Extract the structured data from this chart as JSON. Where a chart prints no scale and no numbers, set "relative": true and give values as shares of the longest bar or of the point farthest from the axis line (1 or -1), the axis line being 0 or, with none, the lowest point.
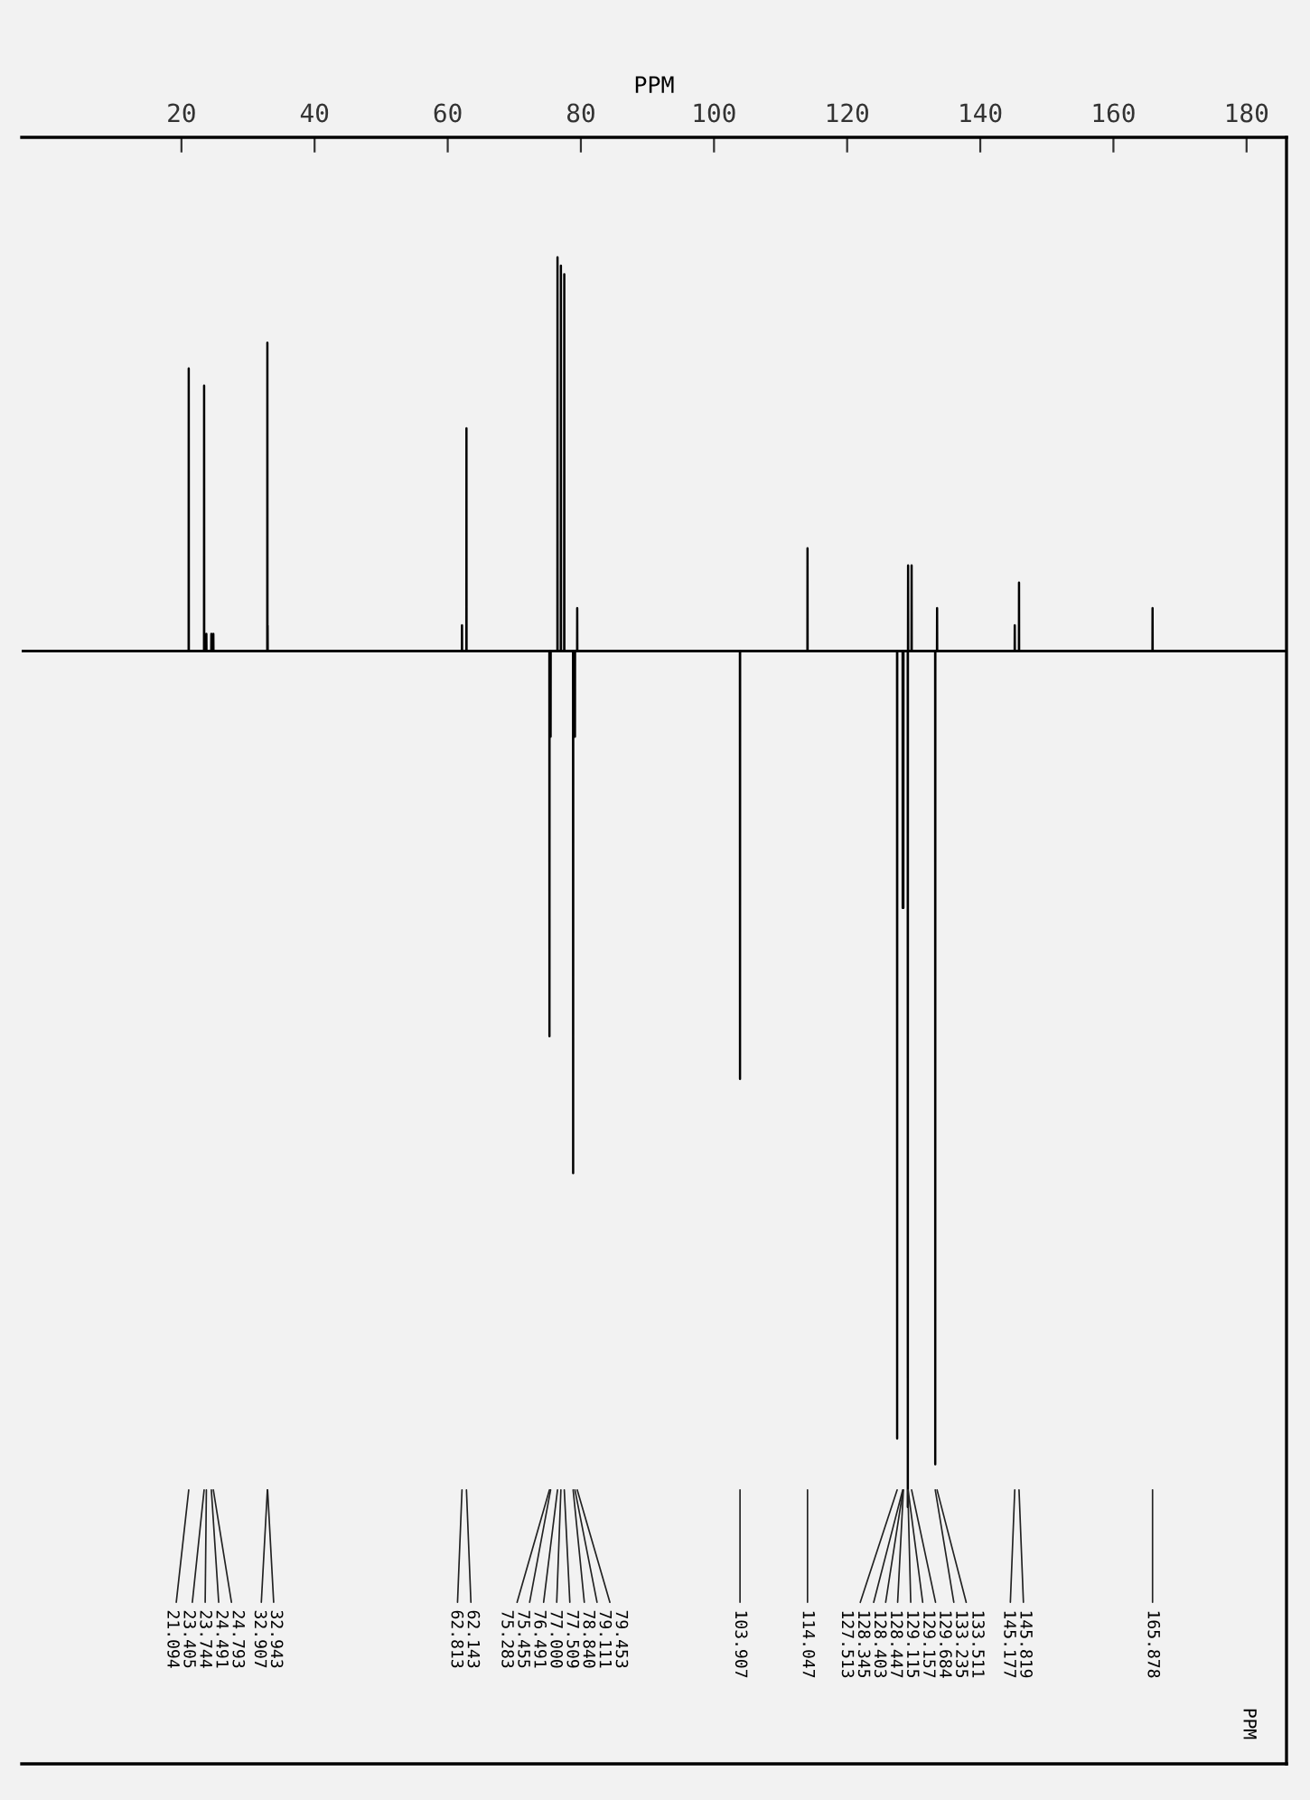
{
  "chart_data": {
    "type": "line",
    "relative": true,
    "xlabel": "PPM",
    "xlim": [
      -4,
      186
    ],
    "xticks": [
      20,
      40,
      60,
      80,
      100,
      120,
      140,
      160,
      180
    ],
    "grid": false,
    "marker": "none",
    "line_style": "solid",
    "series": [
      {
        "color": "#000000",
        "x": [
          -4,
          21.079,
          21.094,
          21.109,
          23.39,
          23.405,
          23.42,
          23.729,
          23.744,
          23.759,
          24.476,
          24.491,
          24.506,
          24.778,
          24.791,
          24.808,
          32.892,
          32.907,
          32.922,
          32.928,
          32.943,
          32.958,
          62.128,
          62.143,
          62.158,
          62.798,
          62.813,
          62.828,
          75.268,
          75.283,
          75.298,
          75.44,
          75.455,
          75.47,
          76.476,
          76.491,
          76.506,
          76.985,
          77.0,
          77.015,
          77.494,
          77.509,
          77.524,
          78.825,
          78.84,
          78.855,
          79.096,
          79.111,
          79.126,
          79.438,
          79.453,
          79.468,
          103.892,
          103.907,
          103.922,
          114.032,
          114.047,
          114.062,
          127.498,
          127.513,
          127.528,
          128.33,
          128.345,
          128.36,
          128.388,
          128.403,
          128.418,
          128.432,
          128.447,
          128.462,
          129.1,
          129.115,
          129.13,
          129.142,
          129.157,
          129.172,
          129.669,
          129.684,
          129.699,
          133.22,
          133.235,
          133.25,
          133.496,
          133.511,
          133.526,
          145.162,
          145.177,
          145.192,
          145.804,
          145.819,
          145.834,
          165.863,
          165.878,
          165.893,
          186
        ],
        "values": [
          0,
          0,
          0.33,
          0,
          0,
          0.31,
          0,
          0,
          0.02,
          0,
          0,
          0.02,
          0,
          0,
          0.02,
          0,
          0,
          0.36,
          0,
          0,
          0.03,
          0,
          0,
          0.03,
          0,
          0,
          0.26,
          0,
          0,
          -0.45,
          0,
          0,
          -0.1,
          0,
          0,
          0.46,
          0,
          0,
          0.45,
          0,
          0,
          0.44,
          0,
          0,
          -0.61,
          0,
          0,
          -0.1,
          0,
          0,
          0.05,
          0,
          0,
          -0.5,
          0,
          0,
          0.12,
          0,
          0,
          -0.92,
          0,
          0,
          -0.3,
          0,
          0,
          -0.3,
          0,
          0,
          -0.3,
          0,
          0,
          -1,
          0,
          0,
          0.1,
          0,
          0,
          0.1,
          0,
          0,
          -0.95,
          0,
          0,
          0.05,
          0,
          0,
          0.03,
          0,
          0,
          0.08,
          0,
          0,
          0.05,
          0,
          0
        ]
      }
    ],
    "annotations": [
      "21.094",
      "23.405",
      "23.744",
      "24.491",
      "24.793",
      "32.907",
      "32.943",
      "62.813",
      "62.143",
      "75.283",
      "75.455",
      "76.491",
      "77.000",
      "77.509",
      "78.840",
      "79.111",
      "79.453",
      "103.907",
      "114.047",
      "127.513",
      "128.345",
      "128.403",
      "128.447",
      "129.115",
      "129.157",
      "129.684",
      "133.235",
      "133.511",
      "145.177",
      "145.819",
      "165.878",
      "PPM"
    ]
  }
}
